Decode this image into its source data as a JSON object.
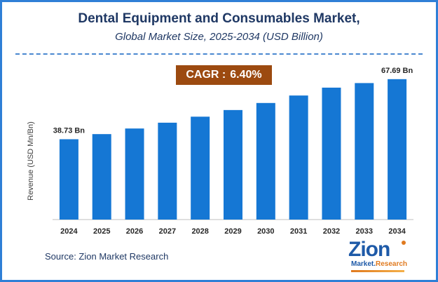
{
  "title": "Dental Equipment and Consumables Market,",
  "subtitle": "Global Market Size, 2025-2034 (USD Billion)",
  "cagr": {
    "label": "CAGR :",
    "value": "6.40%"
  },
  "source": "Source: Zion Market Research",
  "logo": {
    "main": "Zion",
    "sub_a": "Market.",
    "sub_b": "Research"
  },
  "colors": {
    "bar": "#1577d4",
    "cagr_bg": "#9c4a10",
    "title": "#1f3864",
    "frame": "#2f7fd6"
  },
  "chart_data": {
    "type": "bar",
    "categories": [
      "2024",
      "2025",
      "2026",
      "2027",
      "2028",
      "2029",
      "2030",
      "2031",
      "2032",
      "2033",
      "2034"
    ],
    "values": [
      38.73,
      41.2,
      43.9,
      46.7,
      49.6,
      52.8,
      56.2,
      59.8,
      63.6,
      65.8,
      67.69
    ],
    "data_labels": [
      {
        "index": 0,
        "text": "38.73 Bn"
      },
      {
        "index": 10,
        "text": "67.69 Bn"
      }
    ],
    "ylabel": "Revenue (USD Mn/Bn)",
    "xlabel": "",
    "ylim": [
      0,
      70
    ],
    "grid": false
  }
}
